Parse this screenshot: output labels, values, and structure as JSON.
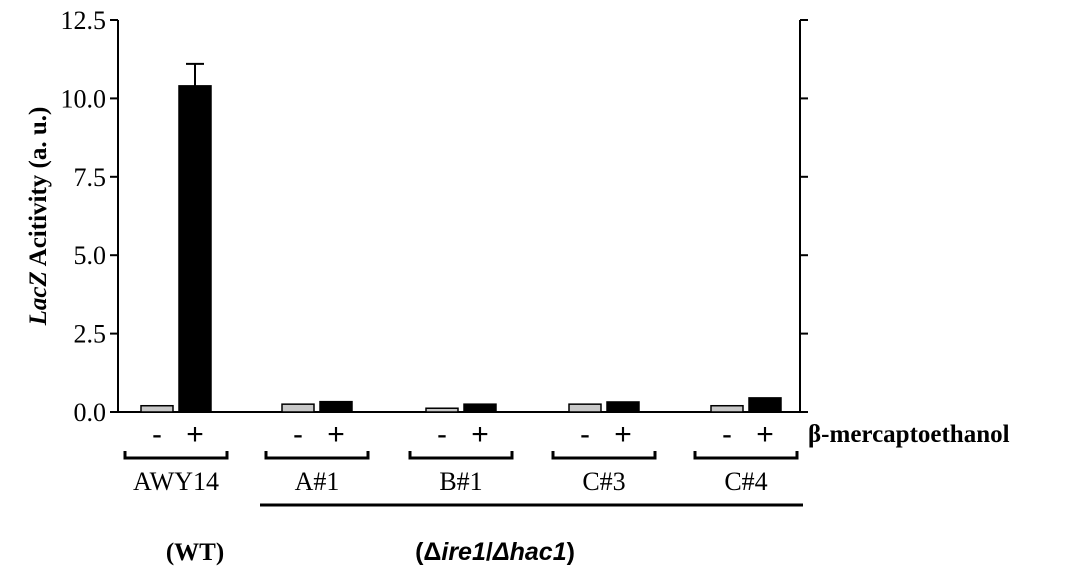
{
  "chart_data": {
    "type": "bar",
    "ylabel_italic": "LacZ",
    "ylabel_rest": " Acitivity (a. u.)",
    "ylim": [
      0,
      12.5
    ],
    "yticks": [
      "0.0",
      "2.5",
      "5.0",
      "7.5",
      "10.0",
      "12.5"
    ],
    "ytick_values": [
      0,
      2.5,
      5,
      7.5,
      10,
      12.5
    ],
    "treatment_label": "β-mercaptoethanol",
    "treatment_levels": [
      "-",
      "+"
    ],
    "groups": [
      {
        "label": "AWY14",
        "minus": 0.2,
        "plus": 10.4,
        "plus_error": 0.7
      },
      {
        "label": "A#1",
        "minus": 0.25,
        "plus": 0.33
      },
      {
        "label": "B#1",
        "minus": 0.12,
        "plus": 0.25
      },
      {
        "label": "C#3",
        "minus": 0.25,
        "plus": 0.32
      },
      {
        "label": "C#4",
        "minus": 0.2,
        "plus": 0.45
      }
    ],
    "series_colors": {
      "minus": "#c8c8c8",
      "plus": "#000000"
    },
    "wt_label": "(WT)",
    "mutant_label_parts": [
      "(",
      "Δ",
      "ire1",
      "/",
      "Δ",
      "hac1",
      ")"
    ]
  }
}
